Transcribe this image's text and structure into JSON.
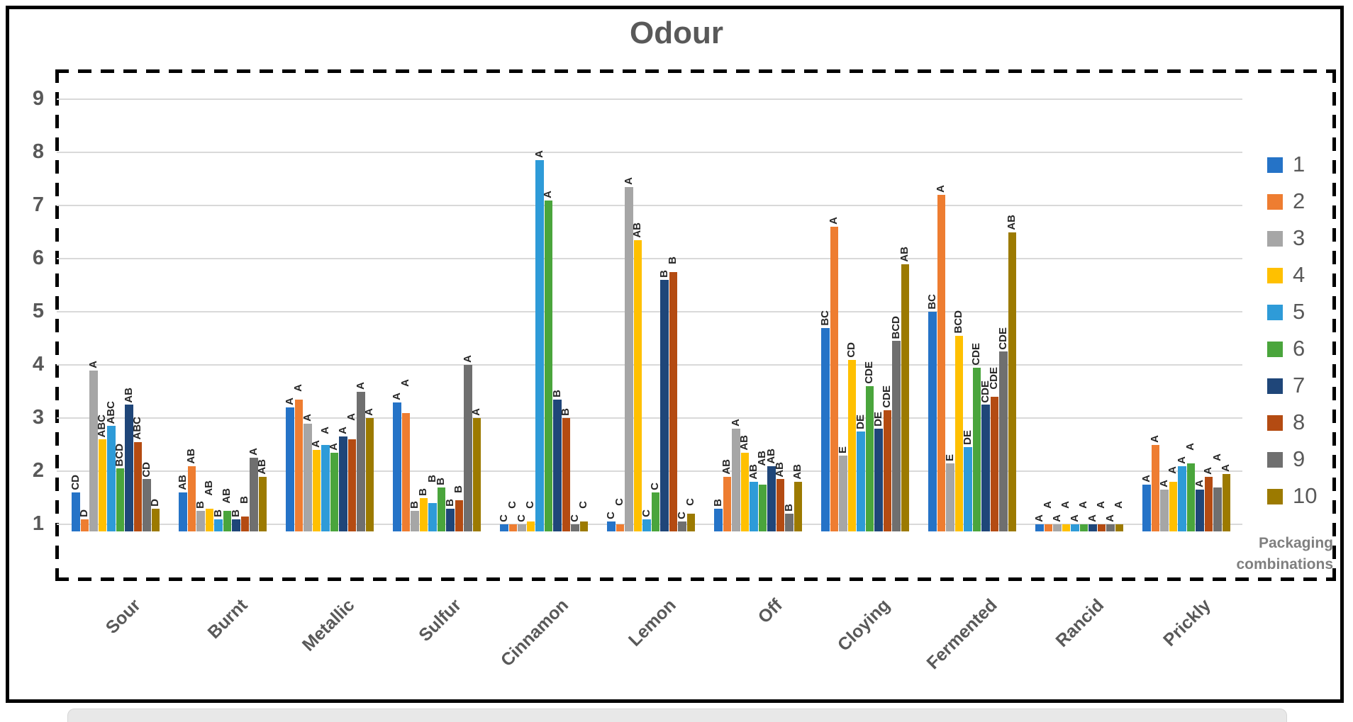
{
  "title": "Odour",
  "legend_footer": {
    "line1": "Packaging",
    "line2": "combinations"
  },
  "chart_data": {
    "type": "bar",
    "title": "Odour",
    "xlabel": "",
    "ylabel": "",
    "legend_position": "right",
    "legend_title": "Packaging combinations",
    "grid": true,
    "ylim": [
      0.87,
      9.5
    ],
    "yticks": [
      1,
      2,
      3,
      4,
      5,
      6,
      7,
      8,
      9
    ],
    "categories": [
      "Sour",
      "Burnt",
      "Metallic",
      "Sulfur",
      "Cinnamon",
      "Lemon",
      "Off",
      "Cloying",
      "Fermented",
      "Rancid",
      "Prickly"
    ],
    "series": [
      {
        "name": "1",
        "color": "#2573C7",
        "values": [
          1.6,
          1.6,
          3.2,
          3.3,
          1.0,
          1.05,
          1.3,
          4.7,
          5.0,
          1.0,
          1.75
        ],
        "letters": [
          "CD",
          "AB",
          "A",
          "A",
          "C",
          "C",
          "B",
          "BC",
          "BC",
          "A",
          "A"
        ]
      },
      {
        "name": "2",
        "color": "#EE7D31",
        "values": [
          1.1,
          2.1,
          3.35,
          3.1,
          1.0,
          1.0,
          1.9,
          6.6,
          7.2,
          1.0,
          2.5
        ],
        "letters": [
          "D",
          "AB",
          "A",
          "A",
          "C",
          "C",
          "AB",
          "A",
          "A",
          "A",
          "A"
        ]
      },
      {
        "name": "3",
        "color": "#A6A6A6",
        "values": [
          3.9,
          1.25,
          2.9,
          1.25,
          1.0,
          7.35,
          2.8,
          2.3,
          2.15,
          1.0,
          1.65
        ],
        "letters": [
          "A",
          "B",
          "A",
          "B",
          "C",
          "A",
          "A",
          "E",
          "E",
          "A",
          "A"
        ]
      },
      {
        "name": "4",
        "color": "#FFC000",
        "values": [
          2.6,
          1.3,
          2.4,
          1.5,
          1.05,
          6.35,
          2.35,
          4.1,
          4.55,
          1.0,
          1.8
        ],
        "letters": [
          "ABC",
          "AB",
          "A",
          "B",
          "C",
          "AB",
          "AB",
          "CD",
          "BCD",
          "A",
          "A"
        ]
      },
      {
        "name": "5",
        "color": "#2E9BD8",
        "values": [
          2.85,
          1.1,
          2.5,
          1.4,
          7.85,
          1.1,
          1.8,
          2.75,
          2.45,
          1.0,
          2.1
        ],
        "letters": [
          "ABC",
          "B",
          "A",
          "B",
          "A",
          "C",
          "AB",
          "DE",
          "DE",
          "A",
          "A"
        ]
      },
      {
        "name": "6",
        "color": "#4AA53C",
        "values": [
          2.05,
          1.25,
          2.35,
          1.7,
          7.1,
          1.6,
          1.75,
          3.6,
          3.95,
          1.0,
          2.15
        ],
        "letters": [
          "BCD",
          "AB",
          "A",
          "B",
          "A",
          "C",
          "AB",
          "CDE",
          "CDE",
          "A",
          "A"
        ]
      },
      {
        "name": "7",
        "color": "#1F4679",
        "values": [
          3.25,
          1.1,
          2.65,
          1.3,
          3.35,
          5.6,
          2.1,
          2.8,
          3.25,
          1.0,
          1.65
        ],
        "letters": [
          "AB",
          "B",
          "A",
          "B",
          "B",
          "B",
          "AB",
          "DE",
          "CDE",
          "A",
          "A"
        ]
      },
      {
        "name": "8",
        "color": "#B44B12",
        "values": [
          2.55,
          1.15,
          2.6,
          1.45,
          3.0,
          5.75,
          1.85,
          3.15,
          3.4,
          1.0,
          1.9
        ],
        "letters": [
          "ABC",
          "B",
          "A",
          "B",
          "B",
          "B",
          "AB",
          "CDE",
          "CDE",
          "A",
          "A"
        ]
      },
      {
        "name": "9",
        "color": "#6F6F6F",
        "values": [
          1.85,
          2.25,
          3.5,
          4.0,
          1.0,
          1.05,
          1.2,
          4.45,
          4.25,
          1.0,
          1.7
        ],
        "letters": [
          "CD",
          "A",
          "A",
          "A",
          "C",
          "C",
          "B",
          "BCD",
          "CDE",
          "A",
          "A"
        ]
      },
      {
        "name": "10",
        "color": "#9C7A00",
        "values": [
          1.3,
          1.9,
          3.0,
          3.0,
          1.05,
          1.2,
          1.8,
          5.9,
          6.5,
          1.0,
          1.95
        ],
        "letters": [
          "D",
          "AB",
          "A",
          "A",
          "C",
          "C",
          "AB",
          "AB",
          "AB",
          "A",
          "A"
        ]
      }
    ]
  }
}
